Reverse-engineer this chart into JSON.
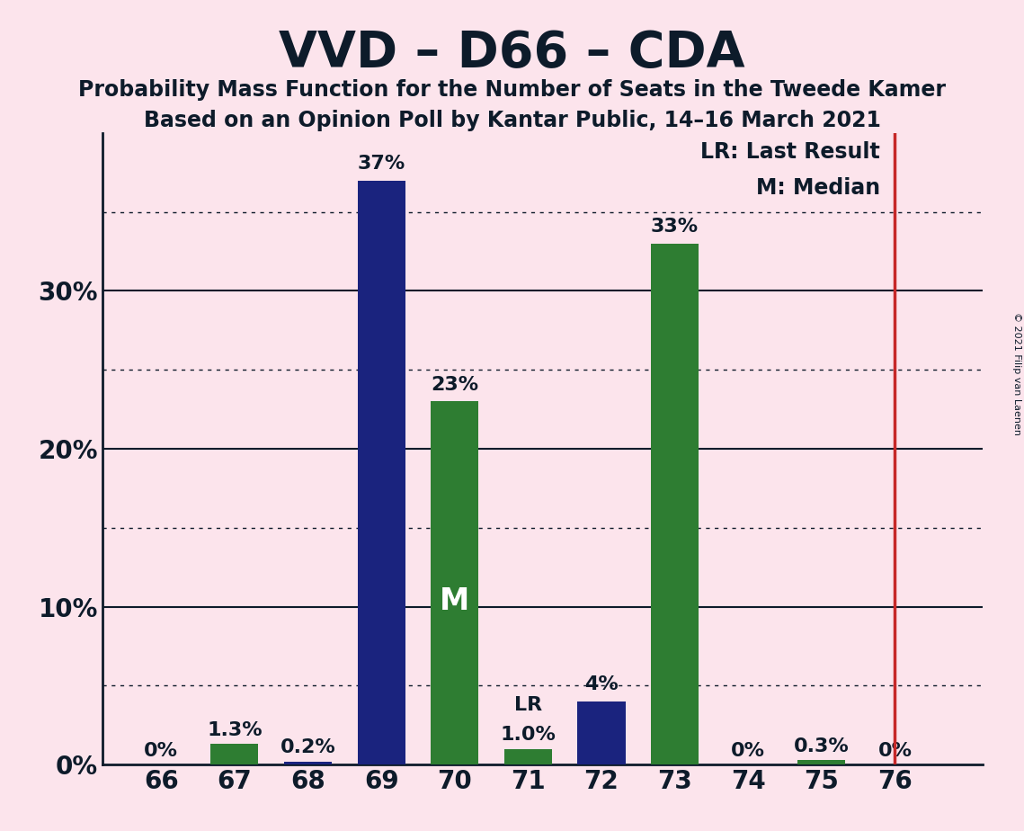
{
  "title": "VVD – D66 – CDA",
  "subtitle1": "Probability Mass Function for the Number of Seats in the Tweede Kamer",
  "subtitle2": "Based on an Opinion Poll by Kantar Public, 14–16 March 2021",
  "copyright": "© 2021 Filip van Laenen",
  "categories": [
    66,
    67,
    68,
    69,
    70,
    71,
    72,
    73,
    74,
    75,
    76
  ],
  "values": [
    0.0,
    1.3,
    0.2,
    37.0,
    23.0,
    1.0,
    4.0,
    33.0,
    0.0,
    0.3,
    0.0
  ],
  "labels": [
    "0%",
    "1.3%",
    "0.2%",
    "37%",
    "23%",
    "1.0%",
    "4%",
    "33%",
    "0%",
    "0.3%",
    "0%"
  ],
  "colors": [
    "#1a237e",
    "#2e7d32",
    "#1a237e",
    "#1a237e",
    "#2e7d32",
    "#2e7d32",
    "#1a237e",
    "#2e7d32",
    "#1a237e",
    "#2e7d32",
    "#1a237e"
  ],
  "median_seat": 70,
  "last_result_seat": 76,
  "median_label": "M",
  "lr_label": "LR",
  "legend_lr": "LR: Last Result",
  "legend_m": "M: Median",
  "background_color": "#fce4ec",
  "solid_yticks": [
    0,
    10,
    20,
    30
  ],
  "dotted_yticks": [
    5,
    15,
    25,
    35
  ],
  "ylim": [
    0,
    40
  ],
  "red_line_color": "#c62828",
  "title_fontsize": 40,
  "subtitle_fontsize": 17,
  "label_fontsize": 16,
  "tick_fontsize": 20,
  "legend_fontsize": 17,
  "dark_color": "#0d1b2a"
}
